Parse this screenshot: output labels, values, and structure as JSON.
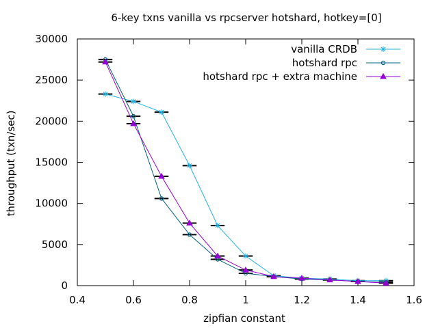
{
  "chart_data": {
    "type": "line",
    "title": "6-key txns vanilla vs rpcserver hotshard, hotkey=[0]",
    "xlabel": "zipfian constant",
    "ylabel": "throughput (txn/sec)",
    "xlim": [
      0.4,
      1.6
    ],
    "ylim": [
      0,
      30000
    ],
    "xticks": [
      0.4,
      0.6,
      0.8,
      1.0,
      1.2,
      1.4,
      1.6
    ],
    "xtick_labels": [
      "0.4",
      "0.6",
      "0.8",
      "1",
      "1.2",
      "1.4",
      "1.6"
    ],
    "yticks": [
      0,
      5000,
      10000,
      15000,
      20000,
      25000,
      30000
    ],
    "ytick_labels": [
      "0",
      "5000",
      "10000",
      "15000",
      "20000",
      "25000",
      "30000"
    ],
    "grid": false,
    "legend_position": "top-right",
    "error_bar_halfwidth_x": 0.025,
    "series": [
      {
        "name": "vanilla CRDB",
        "color": "#1fb0e0",
        "marker": "star",
        "x": [
          0.5,
          0.6,
          0.7,
          0.8,
          0.9,
          1.0,
          1.1,
          1.2,
          1.3,
          1.4,
          1.5
        ],
        "y": [
          23300,
          22400,
          21100,
          14600,
          7300,
          3600,
          1200,
          900,
          800,
          600,
          600
        ]
      },
      {
        "name": "hotshard rpc",
        "color": "#006080",
        "marker": "circle",
        "x": [
          0.5,
          0.6,
          0.7,
          0.8,
          0.9,
          1.0,
          1.1,
          1.2,
          1.3,
          1.4,
          1.5
        ],
        "y": [
          27500,
          20600,
          10600,
          6200,
          3200,
          1500,
          1100,
          800,
          700,
          500,
          400
        ]
      },
      {
        "name": "hotshard rpc + extra machine",
        "color": "#9400d3",
        "marker": "triangle",
        "x": [
          0.5,
          0.6,
          0.7,
          0.8,
          0.9,
          1.0,
          1.1,
          1.2,
          1.3,
          1.4,
          1.5
        ],
        "y": [
          27200,
          19700,
          13300,
          7600,
          3600,
          1900,
          1100,
          900,
          700,
          500,
          300
        ]
      }
    ]
  }
}
